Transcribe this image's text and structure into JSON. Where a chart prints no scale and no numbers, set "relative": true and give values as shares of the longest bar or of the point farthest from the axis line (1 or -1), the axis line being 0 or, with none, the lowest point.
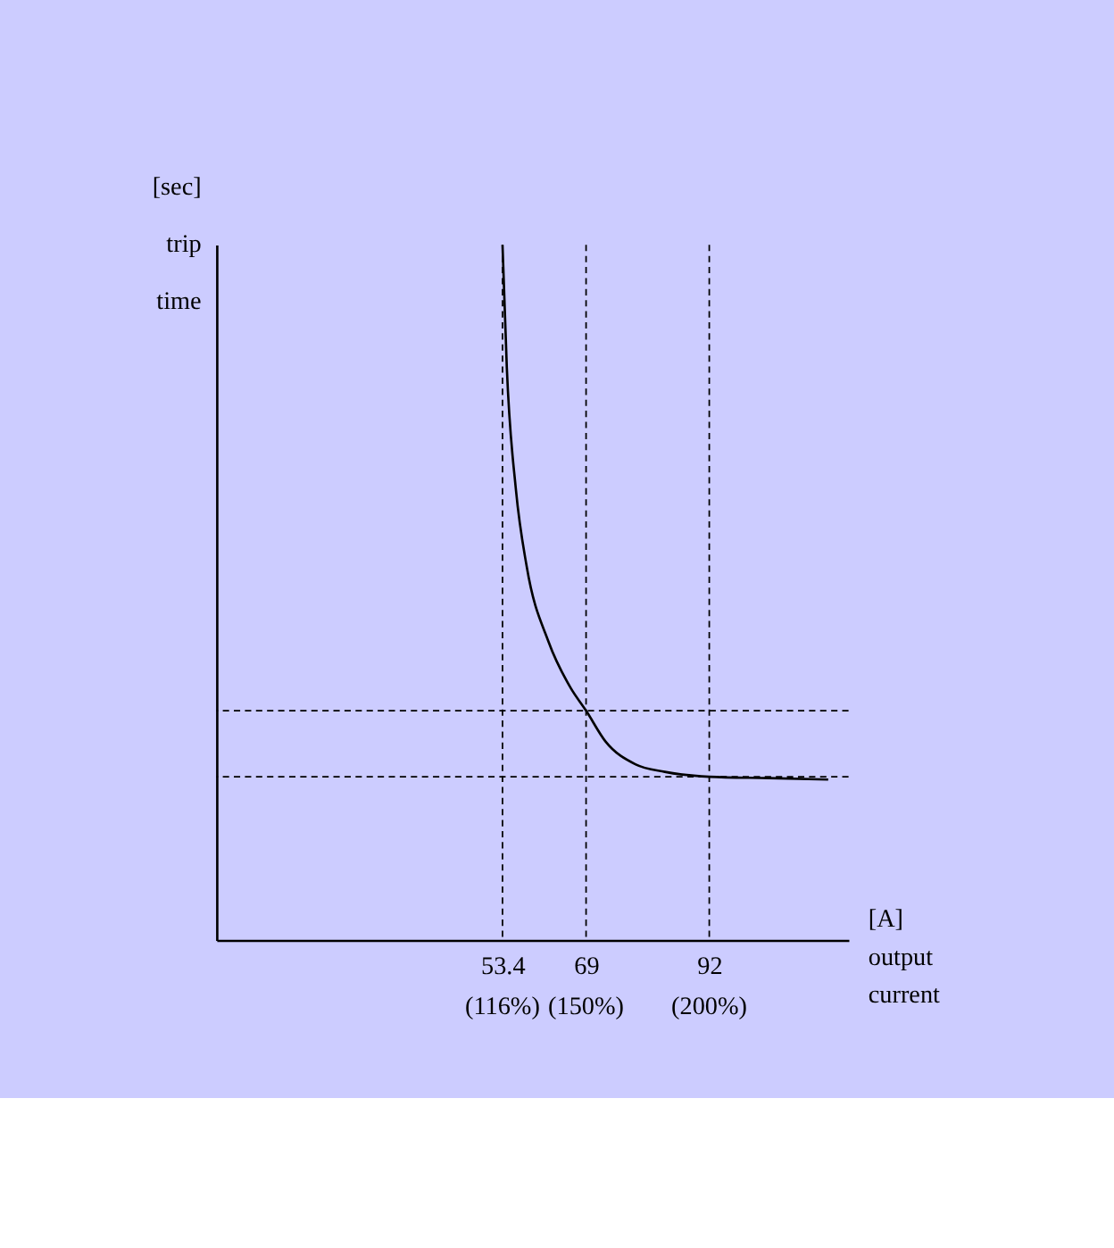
{
  "chart_data": {
    "type": "line",
    "relative": true,
    "xlabel": "[A] output current",
    "ylabel": "[sec] trip time",
    "x": [
      53.4,
      54.2,
      55.9,
      57.9,
      62.0,
      66.1,
      69,
      72.6,
      78.2,
      83.7,
      92,
      103.1,
      114.2
    ],
    "series": [
      {
        "color": "#000000",
        "values": [
          1.0,
          0.824,
          0.648,
          0.538,
          0.429,
          0.363,
          0.33,
          0.286,
          0.253,
          0.242,
          0.235,
          0.233,
          0.231
        ]
      }
    ],
    "xlim": [
      0,
      118
    ],
    "xticks": [
      53.4,
      69,
      92
    ],
    "annotations": [
      "(116%)",
      "(150%)",
      "(200%)"
    ],
    "ref_lines": [
      {
        "axis": "x",
        "value": 53.4,
        "line_style": "dashed"
      },
      {
        "axis": "x",
        "value": 69,
        "line_style": "dashed"
      },
      {
        "axis": "x",
        "value": 92,
        "line_style": "dashed"
      },
      {
        "axis": "y",
        "value": 0.33,
        "line_style": "dashed"
      },
      {
        "axis": "y",
        "value": 0.235,
        "line_style": "dashed"
      }
    ],
    "grid": false,
    "marker": "none",
    "line_style": "solid",
    "tick_labels": "x"
  }
}
